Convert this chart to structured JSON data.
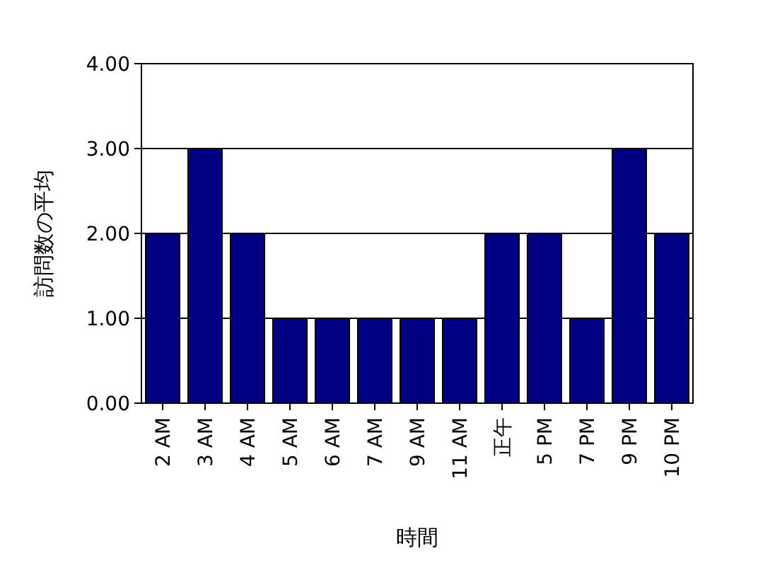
{
  "chart_data": {
    "type": "bar",
    "xlabel": "時間",
    "ylabel": "訪問数の平均",
    "categories": [
      "2 AM",
      "3 AM",
      "4 AM",
      "5 AM",
      "6 AM",
      "7 AM",
      "9 AM",
      "11 AM",
      "正午",
      "5 PM",
      "7 PM",
      "9 PM",
      "10 PM"
    ],
    "series": [
      {
        "color": "#000080",
        "values": [
          2,
          3,
          2,
          1,
          1,
          1,
          1,
          1,
          2,
          2,
          1,
          3,
          2
        ]
      }
    ],
    "ylim": [
      0,
      4
    ],
    "yticks": [
      {
        "value": 0,
        "label": "0.00"
      },
      {
        "value": 1,
        "label": "1.00"
      },
      {
        "value": 2,
        "label": "2.00"
      },
      {
        "value": 3,
        "label": "3.00"
      },
      {
        "value": 4,
        "label": "4.00"
      }
    ],
    "grid": "y"
  }
}
